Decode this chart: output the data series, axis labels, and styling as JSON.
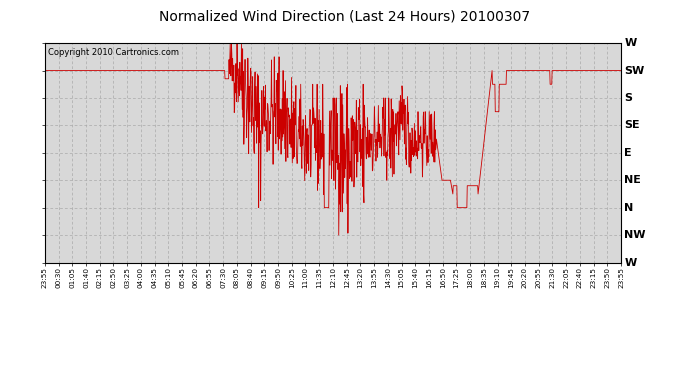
{
  "title": "Normalized Wind Direction (Last 24 Hours) 20100307",
  "copyright_text": "Copyright 2010 Cartronics.com",
  "line_color": "#cc0000",
  "bg_color": "#ffffff",
  "plot_bg_color": "#d8d8d8",
  "grid_color": "#aaaaaa",
  "ytick_labels": [
    "W",
    "SW",
    "S",
    "SE",
    "E",
    "NE",
    "N",
    "NW",
    "W"
  ],
  "ytick_values": [
    8,
    7,
    6,
    5,
    4,
    3,
    2,
    1,
    0
  ],
  "ylim": [
    0,
    8
  ],
  "xtick_labels": [
    "23:55",
    "00:30",
    "01:05",
    "01:40",
    "02:15",
    "02:50",
    "03:25",
    "04:00",
    "04:35",
    "05:10",
    "05:45",
    "06:20",
    "06:55",
    "07:30",
    "08:05",
    "08:40",
    "09:15",
    "09:50",
    "10:25",
    "11:00",
    "11:35",
    "12:10",
    "12:45",
    "13:20",
    "13:55",
    "14:30",
    "15:05",
    "15:40",
    "16:15",
    "16:50",
    "17:25",
    "18:00",
    "18:35",
    "19:10",
    "19:45",
    "20:20",
    "20:55",
    "21:30",
    "22:05",
    "22:40",
    "23:15",
    "23:50",
    "23:55"
  ],
  "num_points": 1440
}
